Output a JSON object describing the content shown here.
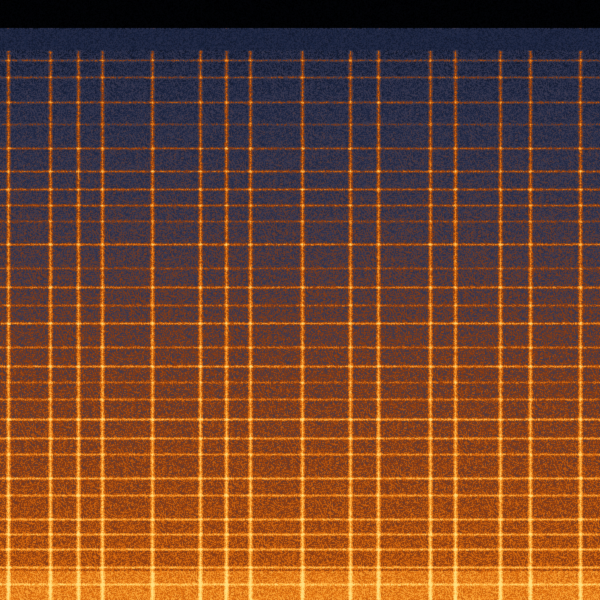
{
  "image": {
    "kind": "spectrogram",
    "colormap": [
      "#000000",
      "#1a2440",
      "#3a3a52",
      "#8a3a10",
      "#e0700f",
      "#ffb040",
      "#ffe080"
    ],
    "background": "#000000"
  }
}
